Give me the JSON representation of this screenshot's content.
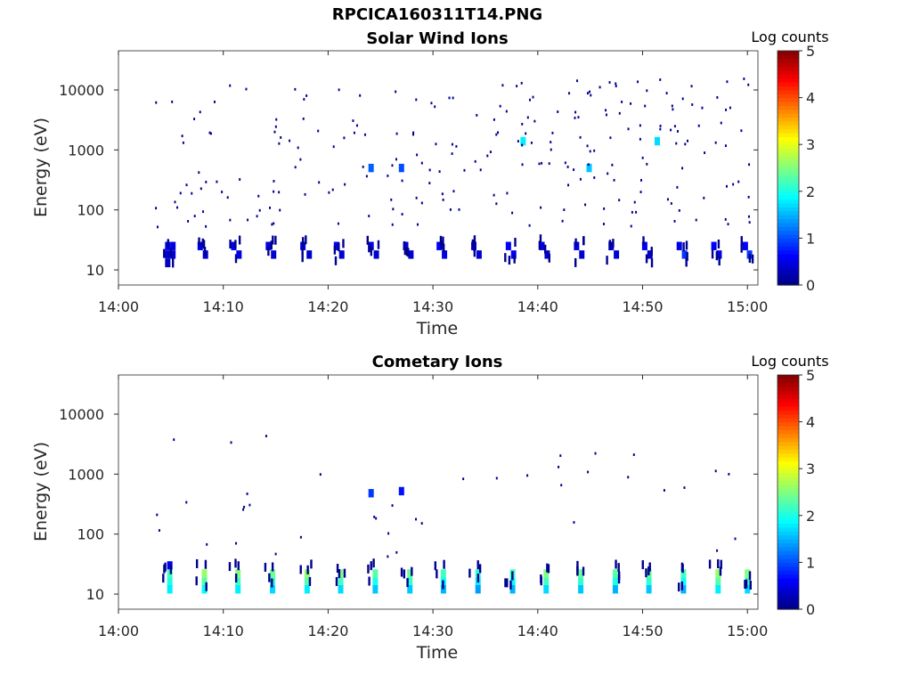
{
  "figure": {
    "title": "RPCICA160311T14.PNG"
  },
  "chart_data": [
    {
      "type": "heatmap",
      "title": "Solar Wind Ions",
      "xlabel": "Time",
      "ylabel": "Energy (eV)",
      "y_scale": "log",
      "ylim": [
        5.6,
        45000
      ],
      "xlim": [
        "14:00",
        "15:01"
      ],
      "x_ticks": [
        "14:00",
        "14:10",
        "14:20",
        "14:30",
        "14:40",
        "14:50",
        "15:00"
      ],
      "y_ticks": [
        "10",
        "100",
        "1000",
        "10000"
      ],
      "colorbar": {
        "label": "Log counts",
        "range": [
          0,
          5
        ],
        "ticks": [
          "0",
          "1",
          "2",
          "3",
          "4",
          "5"
        ],
        "colormap": "jet"
      },
      "sweeps": [
        "14:04.7",
        "14:08.0",
        "14:11.2",
        "14:14.5",
        "14:17.8",
        "14:21.0",
        "14:24.3",
        "14:27.6",
        "14:30.8",
        "14:34.1",
        "14:37.4",
        "14:40.6",
        "14:43.9",
        "14:47.2",
        "14:50.4",
        "14:53.7",
        "14:57.0",
        "15:00.0"
      ],
      "cells": [
        {
          "t": "14:04.7",
          "e": 25,
          "v": 0.6
        },
        {
          "t": "14:04.7",
          "e": 18,
          "v": 0.4
        },
        {
          "t": "14:04.7",
          "e": 13,
          "v": 0.3
        },
        {
          "t": "14:05.2",
          "e": 25,
          "v": 0.5
        },
        {
          "t": "14:05.2",
          "e": 18,
          "v": 0.4
        },
        {
          "t": "14:07.8",
          "e": 25,
          "v": 0.5
        },
        {
          "t": "14:08.3",
          "e": 18,
          "v": 0.4
        },
        {
          "t": "14:11.0",
          "e": 25,
          "v": 0.6
        },
        {
          "t": "14:11.5",
          "e": 18,
          "v": 0.5
        },
        {
          "t": "14:14.3",
          "e": 25,
          "v": 0.5
        },
        {
          "t": "14:14.8",
          "e": 18,
          "v": 0.4
        },
        {
          "t": "14:17.6",
          "e": 25,
          "v": 0.5
        },
        {
          "t": "14:18.2",
          "e": 18,
          "v": 0.4
        },
        {
          "t": "14:20.8",
          "e": 25,
          "v": 0.6
        },
        {
          "t": "14:21.3",
          "e": 18,
          "v": 0.4
        },
        {
          "t": "14:24.1",
          "e": 25,
          "v": 0.5
        },
        {
          "t": "14:24.1",
          "e": 500,
          "v": 1.1
        },
        {
          "t": "14:24.6",
          "e": 18,
          "v": 0.4
        },
        {
          "t": "14:27.4",
          "e": 25,
          "v": 0.5
        },
        {
          "t": "14:27.0",
          "e": 500,
          "v": 1.0
        },
        {
          "t": "14:27.9",
          "e": 18,
          "v": 0.4
        },
        {
          "t": "14:30.6",
          "e": 25,
          "v": 0.6
        },
        {
          "t": "14:31.1",
          "e": 18,
          "v": 0.5
        },
        {
          "t": "14:33.9",
          "e": 25,
          "v": 0.5
        },
        {
          "t": "14:34.4",
          "e": 18,
          "v": 0.4
        },
        {
          "t": "14:37.2",
          "e": 25,
          "v": 0.6
        },
        {
          "t": "14:37.7",
          "e": 18,
          "v": 0.6
        },
        {
          "t": "14:38.6",
          "e": 1400,
          "v": 1.8
        },
        {
          "t": "14:40.4",
          "e": 25,
          "v": 0.5
        },
        {
          "t": "14:40.9",
          "e": 18,
          "v": 0.4
        },
        {
          "t": "14:43.7",
          "e": 25,
          "v": 0.5
        },
        {
          "t": "14:44.9",
          "e": 500,
          "v": 1.6
        },
        {
          "t": "14:44.2",
          "e": 18,
          "v": 0.4
        },
        {
          "t": "14:47.0",
          "e": 25,
          "v": 0.5
        },
        {
          "t": "14:47.5",
          "e": 18,
          "v": 0.4
        },
        {
          "t": "14:50.2",
          "e": 25,
          "v": 0.6
        },
        {
          "t": "14:51.4",
          "e": 1400,
          "v": 1.7
        },
        {
          "t": "14:50.7",
          "e": 18,
          "v": 0.4
        },
        {
          "t": "14:53.5",
          "e": 25,
          "v": 0.5
        },
        {
          "t": "14:54.0",
          "e": 18,
          "v": 0.9
        },
        {
          "t": "14:56.8",
          "e": 25,
          "v": 0.6
        },
        {
          "t": "14:57.3",
          "e": 18,
          "v": 0.5
        },
        {
          "t": "14:59.8",
          "e": 25,
          "v": 0.6
        },
        {
          "t": "15:00.2",
          "e": 18,
          "v": 0.9
        }
      ]
    },
    {
      "type": "heatmap",
      "title": "Cometary Ions",
      "xlabel": "Time",
      "ylabel": "Energy (eV)",
      "y_scale": "log",
      "ylim": [
        5.6,
        45000
      ],
      "xlim": [
        "14:00",
        "15:01"
      ],
      "x_ticks": [
        "14:00",
        "14:10",
        "14:20",
        "14:30",
        "14:40",
        "14:50",
        "15:00"
      ],
      "y_ticks": [
        "10",
        "100",
        "1000",
        "10000"
      ],
      "colorbar": {
        "label": "Log counts",
        "range": [
          0,
          5
        ],
        "ticks": [
          "0",
          "1",
          "2",
          "3",
          "4",
          "5"
        ],
        "colormap": "jet"
      },
      "sweeps": [
        "14:04.7",
        "14:08.0",
        "14:11.2",
        "14:14.5",
        "14:17.8",
        "14:21.0",
        "14:24.3",
        "14:27.6",
        "14:30.8",
        "14:34.1",
        "14:37.4",
        "14:40.6",
        "14:43.9",
        "14:47.2",
        "14:50.4",
        "14:53.7",
        "14:57.0",
        "15:00.0"
      ],
      "cells": [
        {
          "t": "14:04.9",
          "e": 30,
          "v": 0.5
        },
        {
          "t": "14:04.9",
          "e": 22,
          "v": 2.2
        },
        {
          "t": "14:04.9",
          "e": 16,
          "v": 2.0
        },
        {
          "t": "14:04.9",
          "e": 12,
          "v": 1.8
        },
        {
          "t": "14:08.2",
          "e": 22,
          "v": 2.6
        },
        {
          "t": "14:08.2",
          "e": 16,
          "v": 2.3
        },
        {
          "t": "14:08.2",
          "e": 12,
          "v": 1.9
        },
        {
          "t": "14:11.4",
          "e": 22,
          "v": 2.5
        },
        {
          "t": "14:11.4",
          "e": 16,
          "v": 2.2
        },
        {
          "t": "14:11.4",
          "e": 12,
          "v": 1.8
        },
        {
          "t": "14:14.7",
          "e": 22,
          "v": 2.4
        },
        {
          "t": "14:14.7",
          "e": 16,
          "v": 2.1
        },
        {
          "t": "14:14.7",
          "e": 12,
          "v": 1.7
        },
        {
          "t": "14:18.0",
          "e": 22,
          "v": 2.6
        },
        {
          "t": "14:18.0",
          "e": 16,
          "v": 2.3
        },
        {
          "t": "14:18.0",
          "e": 12,
          "v": 1.8
        },
        {
          "t": "14:21.2",
          "e": 22,
          "v": 2.5
        },
        {
          "t": "14:21.2",
          "e": 16,
          "v": 2.2
        },
        {
          "t": "14:21.2",
          "e": 12,
          "v": 1.7
        },
        {
          "t": "14:24.5",
          "e": 22,
          "v": 2.3
        },
        {
          "t": "14:24.5",
          "e": 16,
          "v": 2.0
        },
        {
          "t": "14:24.5",
          "e": 12,
          "v": 1.6
        },
        {
          "t": "14:27.8",
          "e": 22,
          "v": 2.4
        },
        {
          "t": "14:27.8",
          "e": 16,
          "v": 2.1
        },
        {
          "t": "14:27.8",
          "e": 12,
          "v": 1.6
        },
        {
          "t": "14:31.0",
          "e": 22,
          "v": 2.2
        },
        {
          "t": "14:31.0",
          "e": 16,
          "v": 1.9
        },
        {
          "t": "14:31.0",
          "e": 12,
          "v": 1.5
        },
        {
          "t": "14:34.3",
          "e": 22,
          "v": 2.1
        },
        {
          "t": "14:34.3",
          "e": 16,
          "v": 1.8
        },
        {
          "t": "14:34.3",
          "e": 12,
          "v": 1.4
        },
        {
          "t": "14:37.6",
          "e": 22,
          "v": 2.2
        },
        {
          "t": "14:37.6",
          "e": 16,
          "v": 1.9
        },
        {
          "t": "14:37.6",
          "e": 12,
          "v": 1.5
        },
        {
          "t": "14:40.8",
          "e": 22,
          "v": 2.5
        },
        {
          "t": "14:40.8",
          "e": 16,
          "v": 2.2
        },
        {
          "t": "14:40.8",
          "e": 12,
          "v": 1.7
        },
        {
          "t": "14:44.1",
          "e": 22,
          "v": 2.4
        },
        {
          "t": "14:44.1",
          "e": 16,
          "v": 2.1
        },
        {
          "t": "14:44.1",
          "e": 12,
          "v": 1.6
        },
        {
          "t": "14:47.4",
          "e": 22,
          "v": 2.3
        },
        {
          "t": "14:47.4",
          "e": 16,
          "v": 2.0
        },
        {
          "t": "14:47.4",
          "e": 12,
          "v": 1.5
        },
        {
          "t": "14:50.6",
          "e": 22,
          "v": 2.4
        },
        {
          "t": "14:50.6",
          "e": 16,
          "v": 2.1
        },
        {
          "t": "14:50.6",
          "e": 12,
          "v": 1.6
        },
        {
          "t": "14:53.9",
          "e": 22,
          "v": 2.2
        },
        {
          "t": "14:53.9",
          "e": 16,
          "v": 1.9
        },
        {
          "t": "14:53.9",
          "e": 12,
          "v": 1.5
        },
        {
          "t": "14:57.2",
          "e": 22,
          "v": 2.6
        },
        {
          "t": "14:57.2",
          "e": 16,
          "v": 2.3
        },
        {
          "t": "14:57.2",
          "e": 12,
          "v": 1.8
        },
        {
          "t": "15:00.0",
          "e": 22,
          "v": 2.5
        },
        {
          "t": "15:00.0",
          "e": 16,
          "v": 2.2
        },
        {
          "t": "15:00.0",
          "e": 12,
          "v": 1.7
        },
        {
          "t": "14:24.1",
          "e": 480,
          "v": 0.9
        },
        {
          "t": "14:27.0",
          "e": 520,
          "v": 0.7
        }
      ]
    }
  ]
}
